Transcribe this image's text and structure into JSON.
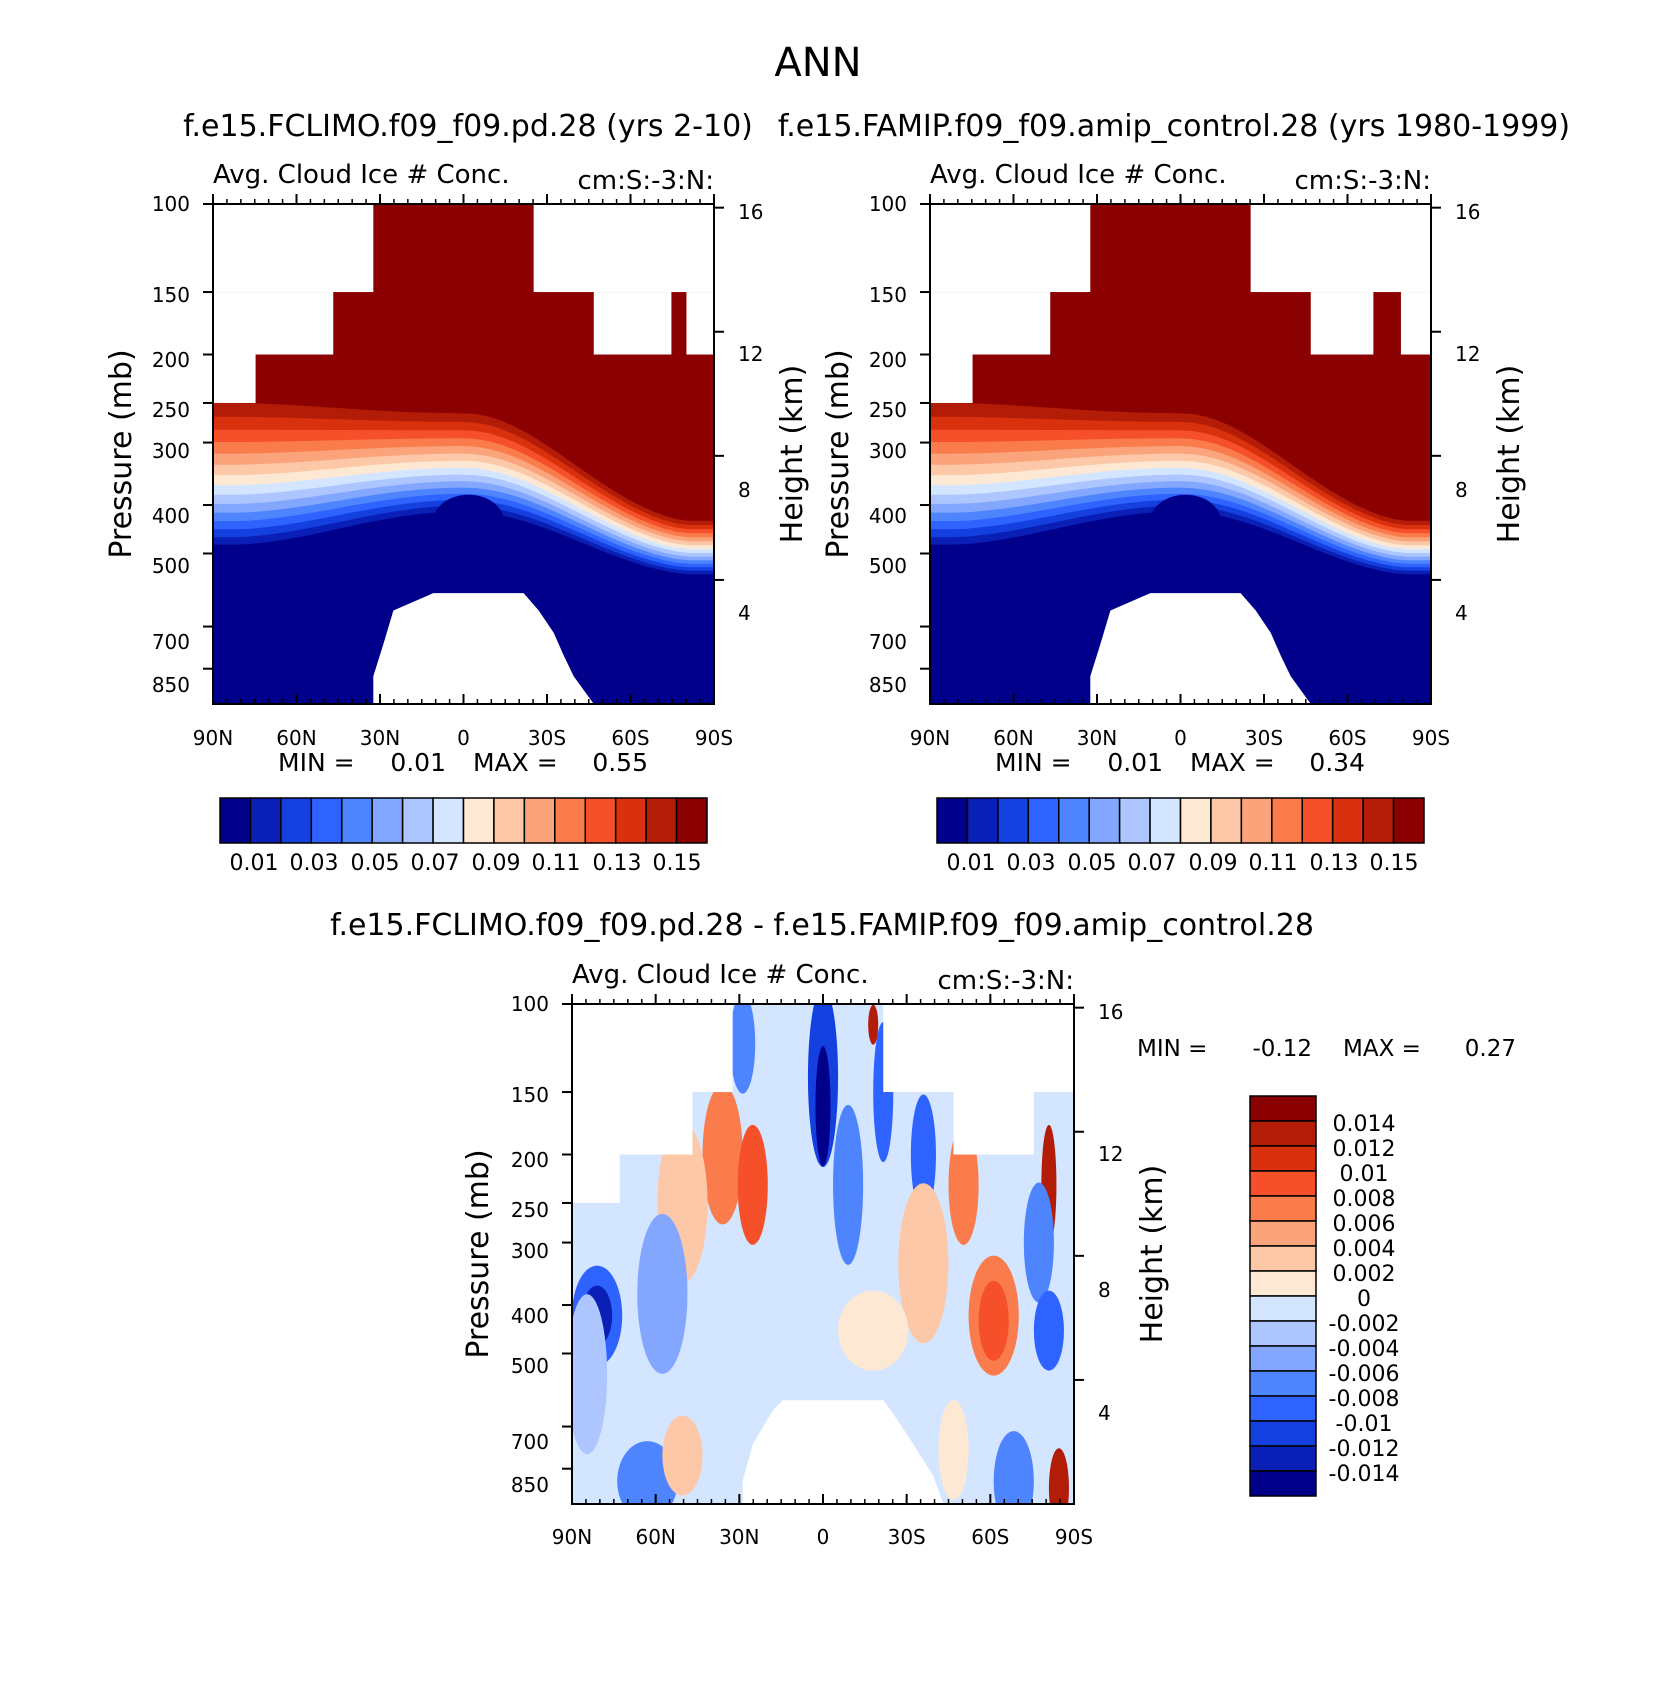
{
  "figure_title": "ANN",
  "chart_data": [
    {
      "type": "heatmap",
      "case_title": "f.e15.FCLIMO.f09_f09.pd.28 (yrs 2-10)",
      "title": "Avg. Cloud Ice # Conc.",
      "units": "cm:S:-3:N:",
      "xlabel": "",
      "ylabel": "Pressure (mb)",
      "ylabel_right": "Height (km)",
      "x_ticks": [
        "90N",
        "60N",
        "30N",
        "0",
        "30S",
        "60S",
        "90S"
      ],
      "y_ticks": [
        100,
        150,
        200,
        250,
        300,
        400,
        500,
        700,
        850
      ],
      "y_ticks_right": [
        16,
        12,
        8,
        4
      ],
      "ylim": [
        100,
        1000
      ],
      "min_label": "MIN =",
      "min_value": "0.01",
      "max_label": "MAX =",
      "max_value": "0.55",
      "colorbar_labels": [
        "0.01",
        "0.03",
        "0.05",
        "0.07",
        "0.09",
        "0.11",
        "0.13",
        "0.15"
      ],
      "colorbar_levels": [
        0.01,
        0.02,
        0.03,
        0.04,
        0.05,
        0.06,
        0.07,
        0.08,
        0.09,
        0.1,
        0.11,
        0.12,
        0.13,
        0.14,
        0.15
      ]
    },
    {
      "type": "heatmap",
      "case_title": "f.e15.FAMIP.f09_f09.amip_control.28 (yrs 1980-1999)",
      "title": "Avg. Cloud Ice # Conc.",
      "units": "cm:S:-3:N:",
      "xlabel": "",
      "ylabel": "Pressure (mb)",
      "ylabel_right": "Height (km)",
      "x_ticks": [
        "90N",
        "60N",
        "30N",
        "0",
        "30S",
        "60S",
        "90S"
      ],
      "y_ticks": [
        100,
        150,
        200,
        250,
        300,
        400,
        500,
        700,
        850
      ],
      "y_ticks_right": [
        16,
        12,
        8,
        4
      ],
      "ylim": [
        100,
        1000
      ],
      "min_label": "MIN =",
      "min_value": "0.01",
      "max_label": "MAX =",
      "max_value": "0.34",
      "colorbar_labels": [
        "0.01",
        "0.03",
        "0.05",
        "0.07",
        "0.09",
        "0.11",
        "0.13",
        "0.15"
      ],
      "colorbar_levels": [
        0.01,
        0.02,
        0.03,
        0.04,
        0.05,
        0.06,
        0.07,
        0.08,
        0.09,
        0.1,
        0.11,
        0.12,
        0.13,
        0.14,
        0.15
      ]
    },
    {
      "type": "heatmap",
      "case_title": "f.e15.FCLIMO.f09_f09.pd.28 - f.e15.FAMIP.f09_f09.amip_control.28",
      "title": "Avg. Cloud Ice # Conc.",
      "units": "cm:S:-3:N:",
      "xlabel": "",
      "ylabel": "Pressure (mb)",
      "ylabel_right": "Height (km)",
      "x_ticks": [
        "90N",
        "60N",
        "30N",
        "0",
        "30S",
        "60S",
        "90S"
      ],
      "y_ticks": [
        100,
        150,
        200,
        250,
        300,
        400,
        500,
        700,
        850
      ],
      "y_ticks_right": [
        16,
        12,
        8,
        4
      ],
      "ylim": [
        100,
        1000
      ],
      "min_label": "MIN =",
      "min_value": "-0.12",
      "max_label": "MAX =",
      "max_value": "0.27",
      "colorbar_labels": [
        "0.014",
        "0.012",
        "0.01",
        "0.008",
        "0.006",
        "0.004",
        "0.002",
        "0",
        "-0.002",
        "-0.004",
        "-0.006",
        "-0.008",
        "-0.01",
        "-0.012",
        "-0.014"
      ],
      "colorbar_levels": [
        0.014,
        0.012,
        0.01,
        0.008,
        0.006,
        0.004,
        0.002,
        0,
        -0.002,
        -0.004,
        -0.006,
        -0.008,
        -0.01,
        -0.012,
        -0.014
      ]
    }
  ],
  "colors": {
    "abs_palette": [
      "#00008b",
      "#0a1fb5",
      "#1440e0",
      "#2e63ff",
      "#4f84ff",
      "#83a7ff",
      "#adc6ff",
      "#d4e6ff",
      "#fde8d4",
      "#fcc8a8",
      "#fba37a",
      "#fa7c4c",
      "#f5502a",
      "#d9300e",
      "#b31c06",
      "#8b0000"
    ],
    "diff_palette": [
      "#8b0000",
      "#b31c06",
      "#d9300e",
      "#f5502a",
      "#fa7c4c",
      "#fba37a",
      "#fcc8a8",
      "#fde8d4",
      "#d4e6ff",
      "#adc6ff",
      "#83a7ff",
      "#4f84ff",
      "#2e63ff",
      "#1440e0",
      "#0a1fb5",
      "#00008b"
    ]
  }
}
